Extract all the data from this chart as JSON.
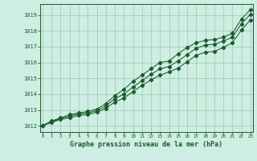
{
  "bg_color": "#ceeee4",
  "grid_color": "#9ecfb8",
  "line_color": "#1a5c2a",
  "xlabel": "Graphe pression niveau de la mer (hPa)",
  "xlim": [
    -0.3,
    23.3
  ],
  "ylim": [
    1011.6,
    1019.7
  ],
  "yticks": [
    1012,
    1013,
    1014,
    1015,
    1016,
    1017,
    1018,
    1019
  ],
  "xticks": [
    0,
    1,
    2,
    3,
    4,
    5,
    6,
    7,
    8,
    9,
    10,
    11,
    12,
    13,
    14,
    15,
    16,
    17,
    18,
    19,
    20,
    21,
    22,
    23
  ],
  "series1": [
    1012.0,
    1012.3,
    1012.5,
    1012.7,
    1012.8,
    1012.9,
    1013.05,
    1013.4,
    1013.9,
    1014.3,
    1014.8,
    1015.2,
    1015.6,
    1016.0,
    1016.1,
    1016.55,
    1016.95,
    1017.25,
    1017.4,
    1017.45,
    1017.6,
    1017.85,
    1018.75,
    1019.35
  ],
  "series2": [
    1012.0,
    1012.25,
    1012.45,
    1012.6,
    1012.75,
    1012.8,
    1012.95,
    1013.25,
    1013.7,
    1014.0,
    1014.45,
    1014.85,
    1015.25,
    1015.6,
    1015.75,
    1016.1,
    1016.5,
    1016.9,
    1017.1,
    1017.15,
    1017.35,
    1017.6,
    1018.45,
    1019.05
  ],
  "series3": [
    1012.0,
    1012.2,
    1012.4,
    1012.5,
    1012.65,
    1012.7,
    1012.85,
    1013.1,
    1013.5,
    1013.75,
    1014.15,
    1014.55,
    1014.9,
    1015.2,
    1015.4,
    1015.65,
    1016.05,
    1016.45,
    1016.65,
    1016.7,
    1016.95,
    1017.25,
    1018.05,
    1018.7
  ]
}
